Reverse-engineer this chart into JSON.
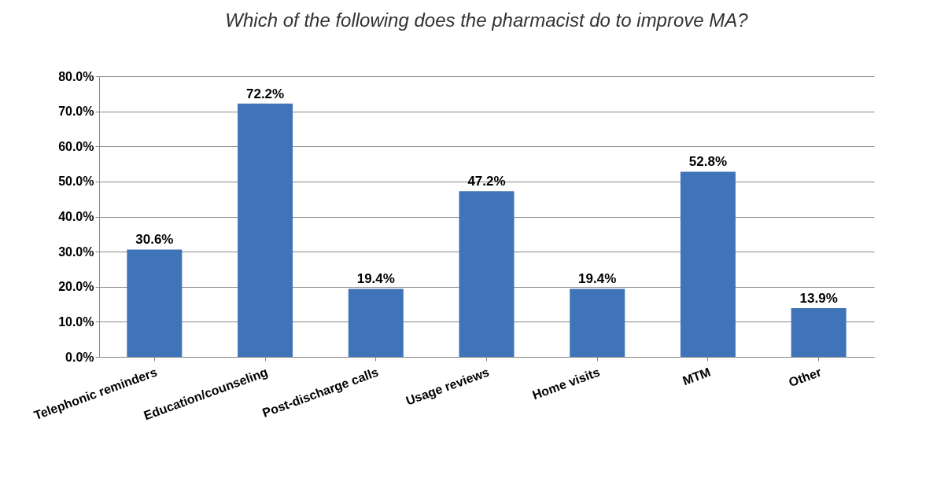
{
  "chart_data": {
    "type": "bar",
    "title": "Which of the following does the pharmacist do to improve MA?",
    "categories": [
      "Telephonic reminders",
      "Education/counseling",
      "Post-discharge calls",
      "Usage reviews",
      "Home visits",
      "MTM",
      "Other"
    ],
    "values": [
      30.6,
      72.2,
      19.4,
      47.2,
      19.4,
      52.8,
      13.9
    ],
    "value_labels": [
      "30.6%",
      "72.2%",
      "19.4%",
      "47.2%",
      "19.4%",
      "52.8%",
      "13.9%"
    ],
    "color": "#3f74b8",
    "ylim": [
      0,
      80
    ],
    "yticks": [
      {
        "value": 0,
        "label": "0.0%"
      },
      {
        "value": 10,
        "label": "10.0%"
      },
      {
        "value": 20,
        "label": "20.0%"
      },
      {
        "value": 30,
        "label": "30.0%"
      },
      {
        "value": 40,
        "label": "40.0%"
      },
      {
        "value": 50,
        "label": "50.0%"
      },
      {
        "value": 60,
        "label": "60.0%"
      },
      {
        "value": 70,
        "label": "70.0%"
      },
      {
        "value": 80,
        "label": "80.0%"
      }
    ],
    "grid": "y"
  }
}
